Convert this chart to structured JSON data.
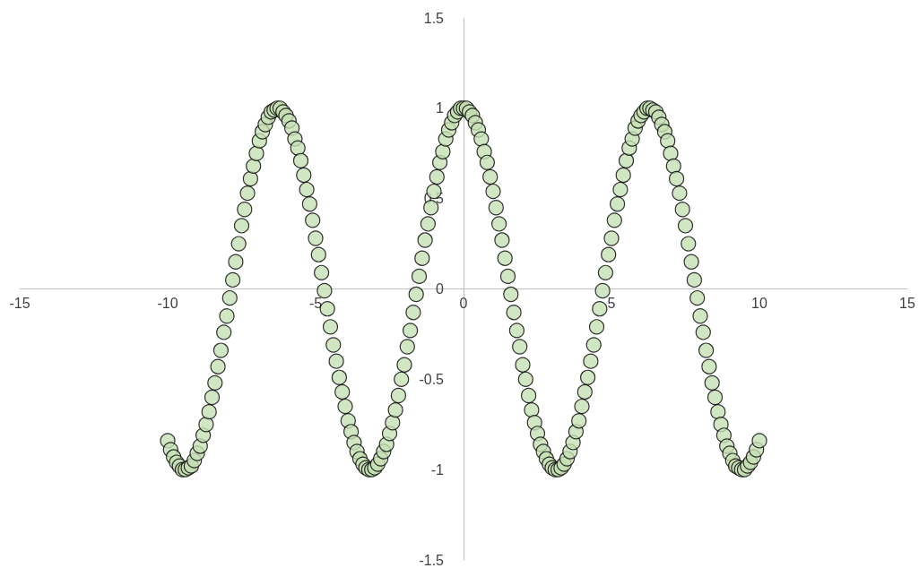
{
  "chart_data": {
    "type": "scatter",
    "marker": "circle",
    "grid": false,
    "xlim": [
      -15,
      15
    ],
    "xticks": [
      -15,
      -10,
      -5,
      0,
      5,
      10,
      15
    ],
    "ylim": [
      -1.5,
      1.5
    ],
    "yticks": [
      -1.5,
      -1,
      -0.5,
      0,
      0.5,
      1,
      1.5
    ],
    "series": [
      {
        "color": "#c5e0b4",
        "x": [
          -10,
          -9.9,
          -9.8,
          -9.7,
          -9.6,
          -9.5,
          -9.4,
          -9.3,
          -9.2,
          -9.1,
          -9,
          -8.9,
          -8.8,
          -8.7,
          -8.6,
          -8.5,
          -8.4,
          -8.3,
          -8.2,
          -8.1,
          -8,
          -7.9,
          -7.8,
          -7.7,
          -7.6,
          -7.5,
          -7.4,
          -7.3,
          -7.2,
          -7.1,
          -7,
          -6.9,
          -6.8,
          -6.7,
          -6.6,
          -6.5,
          -6.4,
          -6.3,
          -6.2,
          -6.1,
          -6,
          -5.9,
          -5.8,
          -5.7,
          -5.6,
          -5.5,
          -5.4,
          -5.3,
          -5.2,
          -5.1,
          -5,
          -4.9,
          -4.8,
          -4.7,
          -4.6,
          -4.5,
          -4.4,
          -4.3,
          -4.2,
          -4.1,
          -4,
          -3.9,
          -3.8,
          -3.7,
          -3.6,
          -3.5,
          -3.4,
          -3.3,
          -3.2,
          -3.1,
          -3,
          -2.9,
          -2.8,
          -2.7,
          -2.6,
          -2.5,
          -2.4,
          -2.3,
          -2.2,
          -2.1,
          -2,
          -1.9,
          -1.8,
          -1.7,
          -1.6,
          -1.5,
          -1.4,
          -1.3,
          -1.2,
          -1.1,
          -1,
          -0.9,
          -0.8,
          -0.7,
          -0.6,
          -0.5,
          -0.4,
          -0.3,
          -0.2,
          -0.1,
          0,
          0.1,
          0.2,
          0.3,
          0.4,
          0.5,
          0.6,
          0.7,
          0.8,
          0.9,
          1,
          1.1,
          1.2,
          1.3,
          1.4,
          1.5,
          1.6,
          1.7,
          1.8,
          1.9,
          2,
          2.1,
          2.2,
          2.3,
          2.4,
          2.5,
          2.6,
          2.7,
          2.8,
          2.9,
          3,
          3.1,
          3.2,
          3.3,
          3.4,
          3.5,
          3.6,
          3.7,
          3.8,
          3.9,
          4,
          4.1,
          4.2,
          4.3,
          4.4,
          4.5,
          4.6,
          4.7,
          4.8,
          4.9,
          5,
          5.1,
          5.2,
          5.3,
          5.4,
          5.5,
          5.6,
          5.7,
          5.8,
          5.9,
          6,
          6.1,
          6.2,
          6.3,
          6.4,
          6.5,
          6.6,
          6.7,
          6.8,
          6.9,
          7,
          7.1,
          7.2,
          7.3,
          7.4,
          7.5,
          7.6,
          7.7,
          7.8,
          7.9,
          8,
          8.1,
          8.2,
          8.3,
          8.4,
          8.5,
          8.6,
          8.7,
          8.8,
          8.9,
          9,
          9.1,
          9.2,
          9.3,
          9.4,
          9.5,
          9.6,
          9.7,
          9.8,
          9.9,
          10
        ],
        "values": [
          -0.84,
          -0.89,
          -0.93,
          -0.96,
          -0.98,
          -1,
          -1,
          -0.99,
          -0.98,
          -0.95,
          -0.91,
          -0.87,
          -0.81,
          -0.75,
          -0.68,
          -0.6,
          -0.52,
          -0.43,
          -0.34,
          -0.24,
          -0.15,
          -0.05,
          0.05,
          0.15,
          0.25,
          0.35,
          0.44,
          0.53,
          0.61,
          0.68,
          0.75,
          0.82,
          0.87,
          0.91,
          0.95,
          0.98,
          0.99,
          1,
          1,
          0.98,
          0.96,
          0.93,
          0.89,
          0.83,
          0.78,
          0.71,
          0.63,
          0.55,
          0.47,
          0.38,
          0.28,
          0.19,
          0.09,
          -0.01,
          -0.11,
          -0.21,
          -0.31,
          -0.4,
          -0.49,
          -0.57,
          -0.65,
          -0.73,
          -0.79,
          -0.85,
          -0.9,
          -0.94,
          -0.97,
          -0.99,
          -1,
          -1,
          -0.99,
          -0.97,
          -0.94,
          -0.9,
          -0.86,
          -0.8,
          -0.74,
          -0.67,
          -0.59,
          -0.5,
          -0.42,
          -0.32,
          -0.23,
          -0.13,
          -0.03,
          0.07,
          0.17,
          0.27,
          0.36,
          0.45,
          0.54,
          0.62,
          0.7,
          0.76,
          0.83,
          0.88,
          0.92,
          0.96,
          0.98,
          1,
          1,
          1,
          0.98,
          0.96,
          0.92,
          0.88,
          0.83,
          0.76,
          0.7,
          0.62,
          0.54,
          0.45,
          0.36,
          0.27,
          0.17,
          0.07,
          -0.03,
          -0.13,
          -0.23,
          -0.32,
          -0.42,
          -0.5,
          -0.59,
          -0.67,
          -0.74,
          -0.8,
          -0.86,
          -0.9,
          -0.94,
          -0.97,
          -0.99,
          -1,
          -1,
          -0.99,
          -0.97,
          -0.94,
          -0.9,
          -0.85,
          -0.79,
          -0.73,
          -0.65,
          -0.57,
          -0.49,
          -0.4,
          -0.31,
          -0.21,
          -0.11,
          -0.01,
          0.09,
          0.19,
          0.28,
          0.38,
          0.47,
          0.55,
          0.63,
          0.71,
          0.78,
          0.83,
          0.89,
          0.93,
          0.96,
          0.98,
          1,
          1,
          0.99,
          0.98,
          0.95,
          0.91,
          0.87,
          0.82,
          0.75,
          0.68,
          0.61,
          0.53,
          0.44,
          0.35,
          0.25,
          0.15,
          0.05,
          -0.05,
          -0.15,
          -0.24,
          -0.34,
          -0.43,
          -0.52,
          -0.6,
          -0.68,
          -0.75,
          -0.81,
          -0.87,
          -0.91,
          -0.95,
          -0.98,
          -0.99,
          -1,
          -1,
          -0.98,
          -0.96,
          -0.93,
          -0.89,
          -0.84
        ]
      }
    ]
  }
}
